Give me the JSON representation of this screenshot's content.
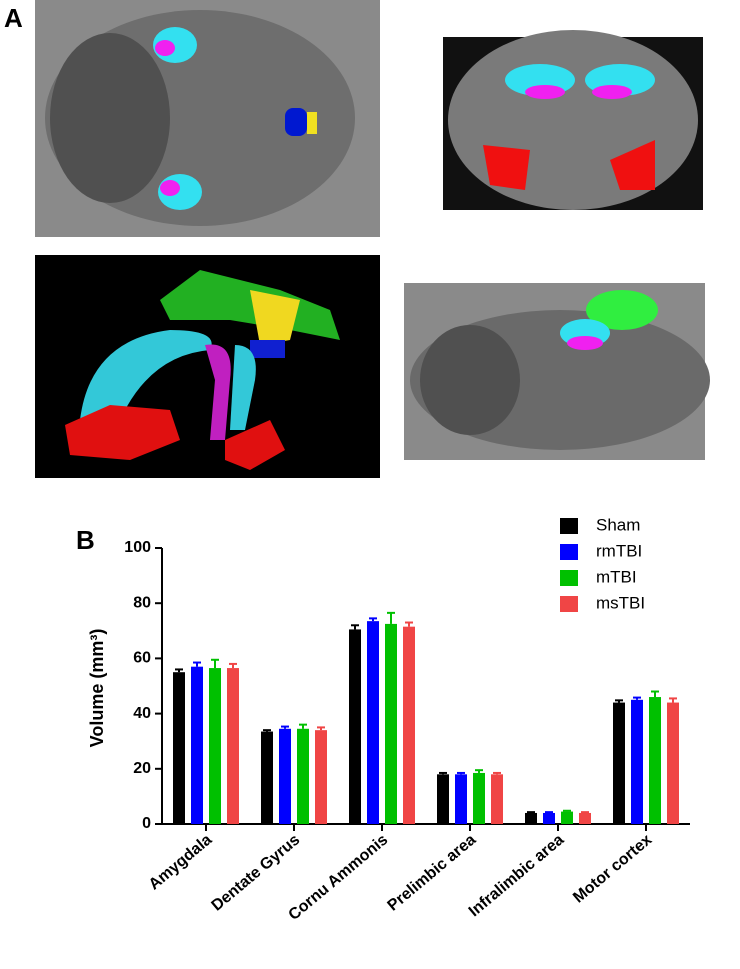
{
  "panel_labels": [
    "A",
    "B"
  ],
  "chart_data": {
    "type": "bar",
    "ylabel": "Volume (mm³)",
    "categories": [
      "Amygdala",
      "Dentate Gyrus",
      "Cornu Ammonis",
      "Prelimbic area",
      "Infralimbic area",
      "Motor cortex"
    ],
    "series": [
      {
        "name": "Sham",
        "color": "#000000",
        "values": [
          55,
          33.5,
          70.5,
          18,
          4,
          44
        ],
        "errors": [
          1,
          0.5,
          1.5,
          0.5,
          0.3,
          0.8
        ]
      },
      {
        "name": "rmTBI",
        "color": "#0000ff",
        "values": [
          57,
          34.5,
          73.5,
          18,
          4,
          45
        ],
        "errors": [
          1.5,
          0.8,
          1,
          0.5,
          0.3,
          0.8
        ]
      },
      {
        "name": "mTBI",
        "color": "#00c000",
        "values": [
          56.5,
          34.5,
          72.5,
          18.5,
          4.5,
          46
        ],
        "errors": [
          3,
          1.5,
          4,
          1,
          0.3,
          2
        ]
      },
      {
        "name": "msTBI",
        "color": "#f04545",
        "values": [
          56.5,
          34,
          71.5,
          18,
          4,
          44
        ],
        "errors": [
          1.5,
          1,
          1.5,
          0.5,
          0.3,
          1.5
        ]
      }
    ],
    "ylim": [
      0,
      100
    ],
    "yticks": [
      0,
      20,
      40,
      60,
      80,
      100
    ],
    "legend": "upper right"
  }
}
